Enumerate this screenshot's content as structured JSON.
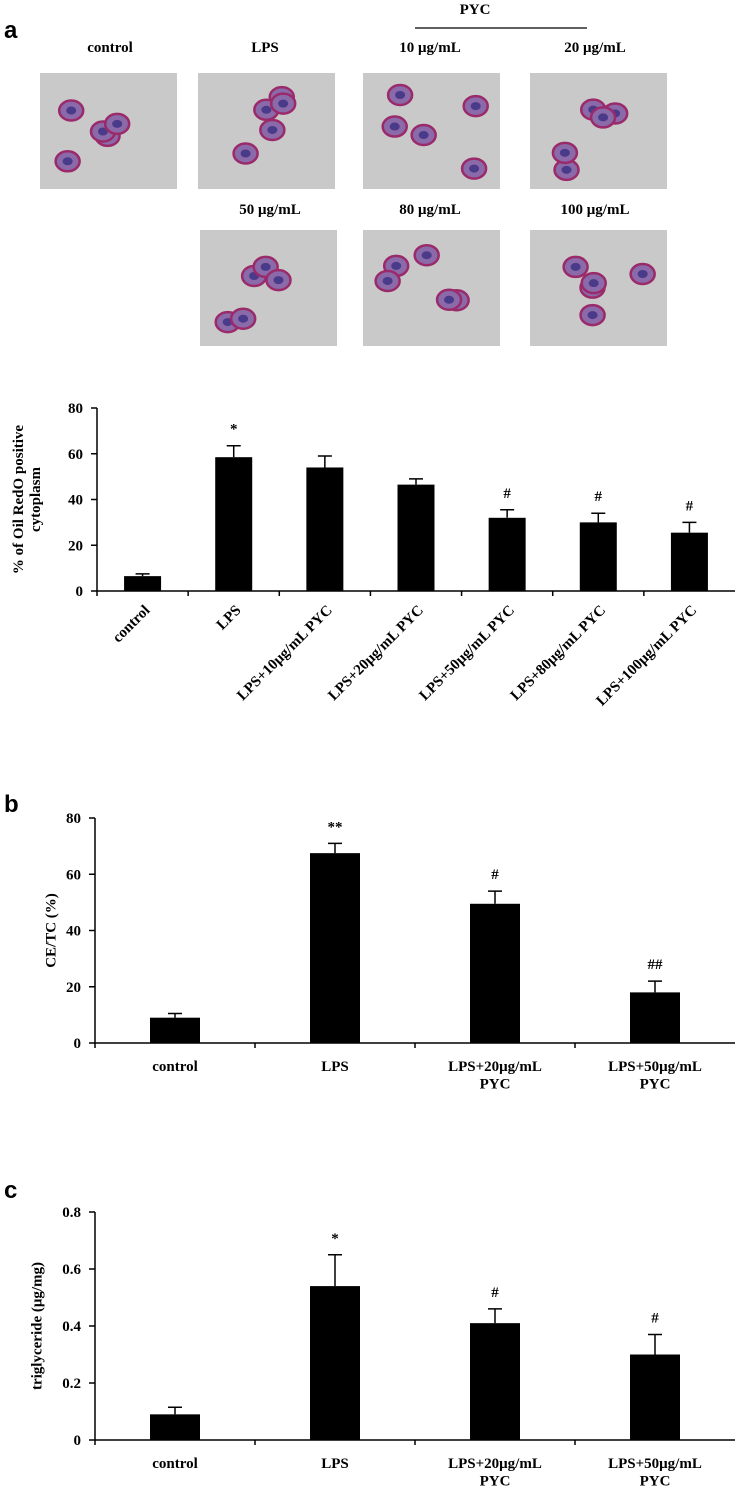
{
  "panels": [
    "a",
    "b",
    "c"
  ],
  "micrographs": {
    "group_label": "PYC",
    "captions": [
      "control",
      "LPS",
      "10  μg/mL",
      "20  μg/mL",
      "50  μg/mL",
      "80  μg/mL",
      "100  μg/mL"
    ]
  },
  "chart_data": [
    {
      "type": "bar",
      "ylabel": "% of Oil RedO positive\ncytoplasm",
      "categories": [
        "control",
        "LPS",
        "LPS+10μg/mL  PYC",
        "LPS+20μg/mL  PYC",
        "LPS+50μg/mL  PYC",
        "LPS+80μg/mL  PYC",
        "LPS+100μg/mL  PYC"
      ],
      "values": [
        6.5,
        58.5,
        54,
        46.5,
        32,
        30,
        25.5
      ],
      "errors": [
        1,
        5,
        5,
        2.5,
        3.5,
        4,
        4.5
      ],
      "annotations": [
        null,
        "*",
        null,
        null,
        "#",
        "#",
        "#"
      ],
      "color": "#000000",
      "ylim": [
        0,
        80
      ],
      "yticks": [
        0,
        20,
        40,
        60,
        80
      ]
    },
    {
      "type": "bar",
      "ylabel": "CE/TC (%)",
      "categories": [
        "control",
        "LPS",
        "LPS+20μg/mL\nPYC",
        "LPS+50μg/mL\nPYC"
      ],
      "values": [
        9,
        67.5,
        49.5,
        18
      ],
      "errors": [
        1.5,
        3.5,
        4.5,
        4
      ],
      "annotations": [
        null,
        "**",
        "#",
        "##"
      ],
      "color": "#000000",
      "ylim": [
        0,
        80
      ],
      "yticks": [
        0,
        20,
        40,
        60,
        80
      ]
    },
    {
      "type": "bar",
      "ylabel": "triglyceride  (μg/mg)",
      "categories": [
        "control",
        "LPS",
        "LPS+20μg/mL\nPYC",
        "LPS+50μg/mL\nPYC"
      ],
      "values": [
        0.09,
        0.54,
        0.41,
        0.3
      ],
      "errors": [
        0.025,
        0.11,
        0.05,
        0.07
      ],
      "annotations": [
        null,
        "*",
        "#",
        "#"
      ],
      "color": "#000000",
      "ylim": [
        0,
        0.8
      ],
      "yticks": [
        0,
        0.2,
        0.4,
        0.6,
        0.8
      ]
    }
  ]
}
